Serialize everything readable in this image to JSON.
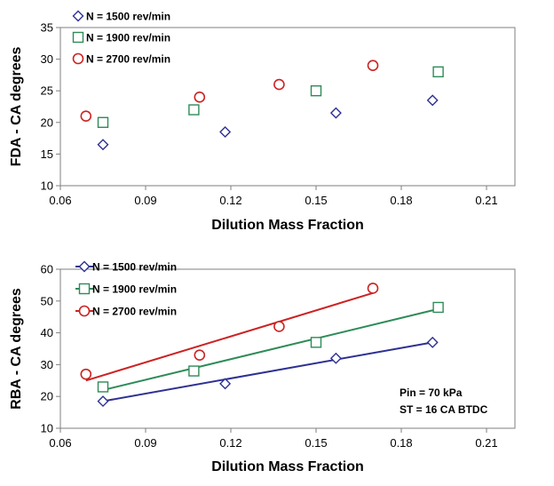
{
  "chart_data": [
    {
      "type": "scatter",
      "xlabel": "Dilution Mass Fraction",
      "ylabel": "FDA  -  CA degrees",
      "xlim": [
        0.06,
        0.22
      ],
      "ylim": [
        10,
        35
      ],
      "xticks": [
        "0.06",
        "0.09",
        "0.12",
        "0.15",
        "0.18",
        "0.21"
      ],
      "yticks": [
        "10",
        "15",
        "20",
        "25",
        "30",
        "35"
      ],
      "legend_position": "top-left",
      "series": [
        {
          "name": "N = 1500 rev/min",
          "marker": "diamond",
          "color": "#2e3192",
          "x": [
            0.075,
            0.118,
            0.157,
            0.191
          ],
          "y": [
            16.5,
            18.5,
            21.5,
            23.5
          ]
        },
        {
          "name": "N = 1900 rev/min",
          "marker": "square",
          "color": "#2e8b57",
          "x": [
            0.075,
            0.107,
            0.15,
            0.193
          ],
          "y": [
            20,
            22,
            25,
            28
          ]
        },
        {
          "name": "N = 2700 rev/min",
          "marker": "circle",
          "color": "#cc2222",
          "x": [
            0.069,
            0.109,
            0.137,
            0.17
          ],
          "y": [
            21,
            24,
            26,
            29
          ]
        }
      ]
    },
    {
      "type": "scatter",
      "xlabel": "Dilution Mass Fraction",
      "ylabel": "RBA  -  CA degrees",
      "xlim": [
        0.06,
        0.22
      ],
      "ylim": [
        10,
        60
      ],
      "xticks": [
        "0.06",
        "0.09",
        "0.12",
        "0.15",
        "0.18",
        "0.21"
      ],
      "yticks": [
        "10",
        "20",
        "30",
        "40",
        "50",
        "60"
      ],
      "legend_position": "top-left",
      "annotation": [
        "Pin = 70 kPa",
        "ST = 16 CA BTDC"
      ],
      "series": [
        {
          "name": "N = 1500 rev/min",
          "marker": "diamond",
          "color": "#2e3192",
          "x": [
            0.075,
            0.118,
            0.157,
            0.191
          ],
          "y": [
            18.5,
            24,
            32,
            37
          ],
          "trendline": [
            [
              0.075,
              18.5
            ],
            [
              0.191,
              37
            ]
          ]
        },
        {
          "name": "N = 1900 rev/min",
          "marker": "square",
          "color": "#2e8b57",
          "x": [
            0.075,
            0.107,
            0.15,
            0.193
          ],
          "y": [
            23,
            28,
            37,
            48
          ],
          "trendline": [
            [
              0.075,
              22
            ],
            [
              0.193,
              47.5
            ]
          ]
        },
        {
          "name": "N = 2700 rev/min",
          "marker": "circle",
          "color": "#cc2222",
          "x": [
            0.069,
            0.109,
            0.137,
            0.17
          ],
          "y": [
            27,
            33,
            42,
            54
          ],
          "trendline": [
            [
              0.069,
              25
            ],
            [
              0.17,
              52.5
            ]
          ]
        }
      ]
    }
  ]
}
